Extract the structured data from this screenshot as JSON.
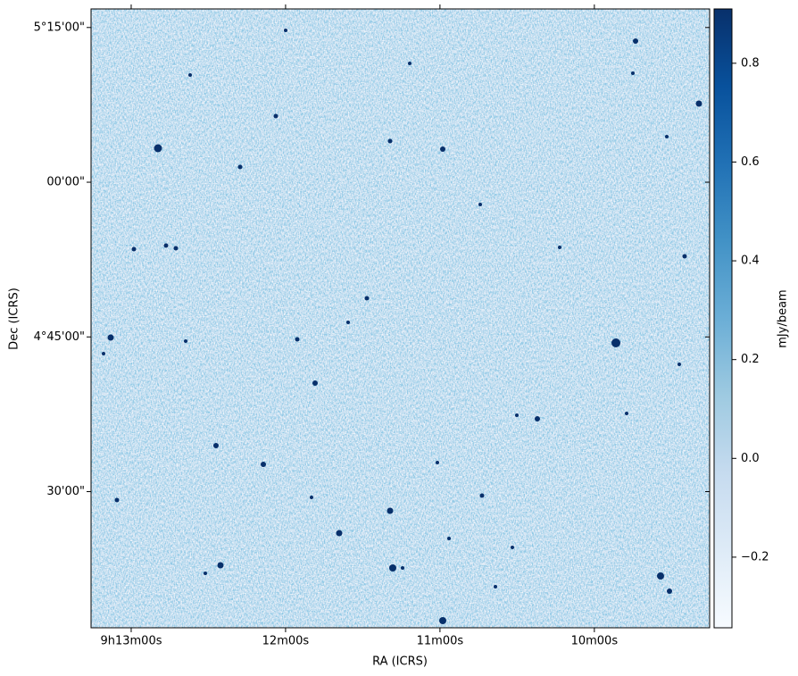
{
  "chart_data": {
    "type": "image",
    "xlabel": "RA (ICRS)",
    "ylabel": "Dec (ICRS)",
    "xlim": [
      795.6,
      555.2
    ],
    "xticks": [
      {
        "value": 780,
        "label": "9h13m00s"
      },
      {
        "value": 720,
        "label": "12m00s"
      },
      {
        "value": 660,
        "label": "11m00s"
      },
      {
        "value": 600,
        "label": "10m00s"
      }
    ],
    "ylim": [
      256.8,
      316.8
    ],
    "yticks": [
      {
        "value": 315,
        "label": "5°15'00\""
      },
      {
        "value": 300,
        "label": "00'00\""
      },
      {
        "value": 285,
        "label": "4°45'00\""
      },
      {
        "value": 270,
        "label": "30'00\""
      }
    ],
    "colorbar": {
      "label": "mJy/beam",
      "colormap": "Blues",
      "clim": [
        -0.343,
        0.91
      ],
      "ticks": [
        {
          "value": -0.2,
          "label": "−0.2"
        },
        {
          "value": 0,
          "label": "0.0"
        },
        0.2,
        0.4,
        0.6,
        0.8
      ]
    }
  }
}
